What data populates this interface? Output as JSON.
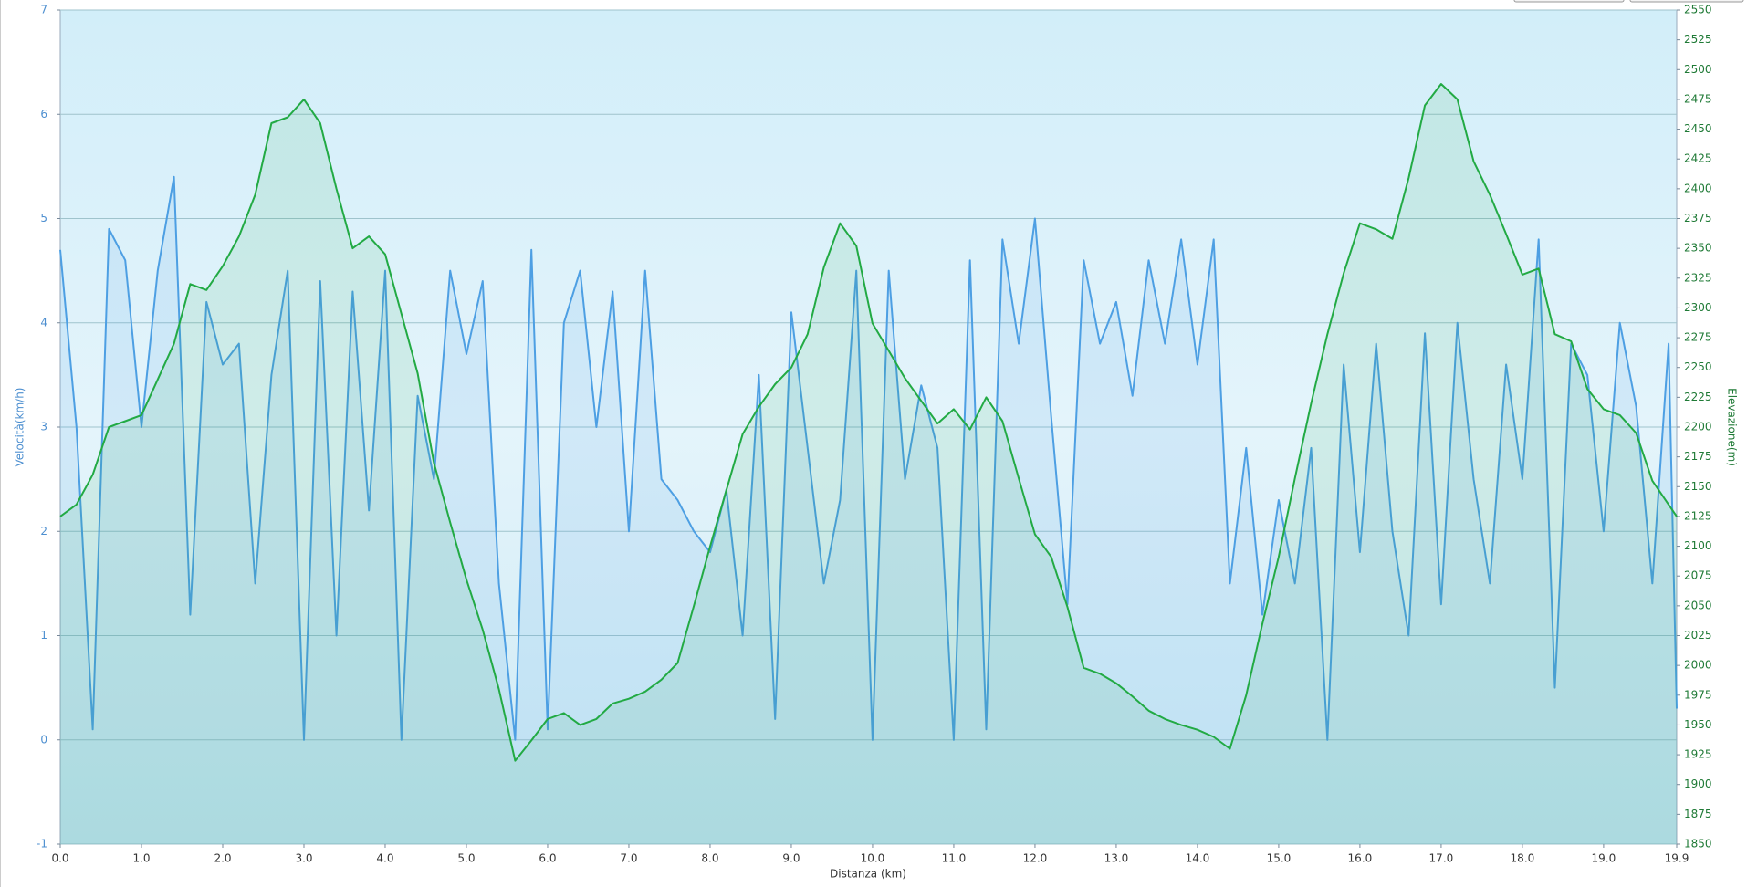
{
  "chart_data": {
    "type": "line",
    "xlabel": "Distanza  (km)",
    "ylabel": "Velocità(km/h)",
    "y2label": "Elevazione(m)",
    "x": [
      0,
      0.2,
      0.4,
      0.6,
      0.8,
      1,
      1.2,
      1.4,
      1.6,
      1.8,
      2,
      2.2,
      2.4,
      2.6,
      2.8,
      3,
      3.2,
      3.4,
      3.6,
      3.8,
      4,
      4.2,
      4.4,
      4.6,
      4.8,
      5,
      5.2,
      5.4,
      5.6,
      5.8,
      6,
      6.2,
      6.4,
      6.6,
      6.8,
      7,
      7.2,
      7.4,
      7.6,
      7.8,
      8,
      8.2,
      8.4,
      8.6,
      8.8,
      9,
      9.2,
      9.4,
      9.6,
      9.8,
      10,
      10.2,
      10.4,
      10.6,
      10.8,
      11,
      11.2,
      11.4,
      11.6,
      11.8,
      12,
      12.2,
      12.4,
      12.6,
      12.8,
      13,
      13.2,
      13.4,
      13.6,
      13.8,
      14,
      14.2,
      14.4,
      14.6,
      14.8,
      15,
      15.2,
      15.4,
      15.6,
      15.8,
      16,
      16.2,
      16.4,
      16.6,
      16.8,
      17,
      17.2,
      17.4,
      17.6,
      17.8,
      18,
      18.2,
      18.4,
      18.6,
      18.8,
      19,
      19.2,
      19.4,
      19.6,
      19.8,
      19.9
    ],
    "series": [
      {
        "color": "#4d9fe3",
        "values": [
          4.7,
          3.0,
          0.1,
          4.9,
          4.6,
          3.0,
          4.5,
          5.4,
          1.2,
          4.2,
          3.6,
          3.8,
          1.5,
          3.5,
          4.5,
          0.0,
          4.4,
          1.0,
          4.3,
          2.2,
          4.5,
          0.0,
          3.3,
          2.5,
          4.5,
          3.7,
          4.4,
          1.5,
          0.0,
          4.7,
          0.1,
          4.0,
          4.5,
          3.0,
          4.3,
          2.0,
          4.5,
          2.5,
          2.3,
          2.0,
          1.8,
          2.4,
          1.0,
          3.5,
          0.2,
          4.1,
          2.8,
          1.5,
          2.3,
          4.5,
          0.0,
          4.5,
          2.5,
          3.4,
          2.8,
          0.0,
          4.6,
          0.1,
          4.8,
          3.8,
          5.0,
          3.1,
          1.3,
          4.6,
          3.8,
          4.2,
          3.3,
          4.6,
          3.8,
          4.8,
          3.6,
          4.8,
          1.5,
          2.8,
          1.2,
          2.3,
          1.5,
          2.8,
          0.0,
          3.6,
          1.8,
          3.8,
          2.0,
          1.0,
          3.9,
          1.3,
          4.0,
          2.5,
          1.5,
          3.6,
          2.5,
          4.8,
          0.5,
          3.8,
          3.5,
          2.0,
          4.0,
          3.2,
          1.5,
          3.8,
          0.3
        ]
      },
      {
        "color": "#22aa44",
        "axis": "y2",
        "values": [
          2125,
          2135,
          2160,
          2200,
          2205,
          2210,
          2240,
          2270,
          2320,
          2315,
          2335,
          2360,
          2395,
          2455,
          2460,
          2475,
          2455,
          2400,
          2350,
          2360,
          2345,
          2295,
          2245,
          2170,
          2120,
          2072,
          2030,
          1980,
          1920,
          1937,
          1955,
          1960,
          1950,
          1955,
          1968,
          1972,
          1978,
          1988,
          2002,
          2050,
          2100,
          2147,
          2194,
          2217,
          2236,
          2250,
          2278,
          2334,
          2371,
          2352,
          2287,
          2264,
          2241,
          2222,
          2203,
          2215,
          2198,
          2225,
          2205,
          2157,
          2110,
          2091,
          2049,
          1998,
          1993,
          1985,
          1974,
          1962,
          1955,
          1950,
          1946,
          1940,
          1930,
          1975,
          2035,
          2091,
          2157,
          2220,
          2278,
          2329,
          2371,
          2366,
          2358,
          2409,
          2470,
          2488,
          2475,
          2423,
          2395,
          2362,
          2328,
          2333,
          2278,
          2272,
          2232,
          2215,
          2210,
          2195,
          2155,
          2135,
          2125
        ]
      }
    ],
    "xlim": [
      0,
      19.9
    ],
    "xticks": [
      {
        "value": 0,
        "label": "0.0"
      },
      {
        "value": 1,
        "label": "1.0"
      },
      {
        "value": 2,
        "label": "2.0"
      },
      {
        "value": 3,
        "label": "3.0"
      },
      {
        "value": 4,
        "label": "4.0"
      },
      {
        "value": 5,
        "label": "5.0"
      },
      {
        "value": 6,
        "label": "6.0"
      },
      {
        "value": 7,
        "label": "7.0"
      },
      {
        "value": 8,
        "label": "8.0"
      },
      {
        "value": 9,
        "label": "9.0"
      },
      {
        "value": 10,
        "label": "10.0"
      },
      {
        "value": 11,
        "label": "11.0"
      },
      {
        "value": 12,
        "label": "12.0"
      },
      {
        "value": 13,
        "label": "13.0"
      },
      {
        "value": 14,
        "label": "14.0"
      },
      {
        "value": 15,
        "label": "15.0"
      },
      {
        "value": 16,
        "label": "16.0"
      },
      {
        "value": 17,
        "label": "17.0"
      },
      {
        "value": 18,
        "label": "18.0"
      },
      {
        "value": 19,
        "label": "19.0"
      },
      19.9
    ],
    "ylim": [
      -1,
      7
    ],
    "yticks": [
      -1,
      0,
      1,
      2,
      3,
      4,
      5,
      6,
      7
    ],
    "y2lim": [
      1850,
      2550
    ],
    "y2ticks": [
      1850,
      1875,
      1900,
      1925,
      1950,
      1975,
      2000,
      2025,
      2050,
      2075,
      2100,
      2125,
      2150,
      2175,
      2200,
      2225,
      2250,
      2275,
      2300,
      2325,
      2350,
      2375,
      2400,
      2425,
      2450,
      2475,
      2500,
      2525,
      2550
    ],
    "grid": true
  }
}
